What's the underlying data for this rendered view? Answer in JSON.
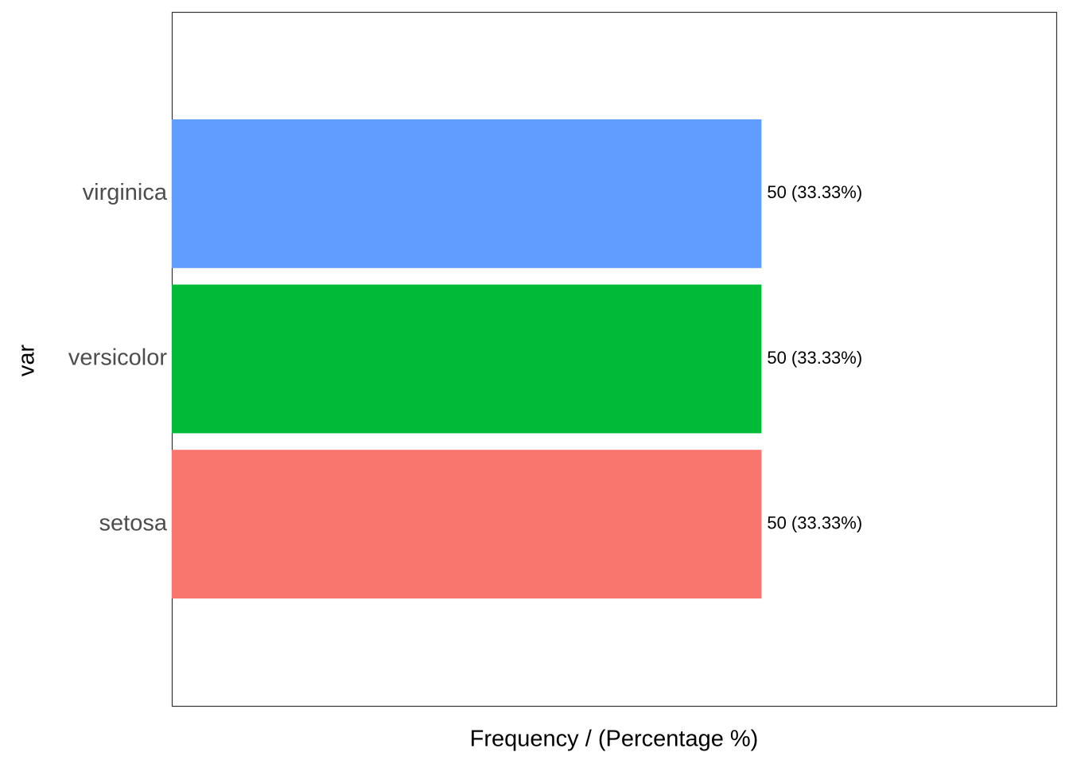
{
  "chart_data": {
    "type": "barh",
    "x_label": "Frequency / (Percentage %)",
    "y_label": "var",
    "categories": [
      "setosa",
      "versicolor",
      "virginica"
    ],
    "values": [
      50,
      50,
      50
    ],
    "value_labels": [
      "50 (33.33%)",
      "50 (33.33%)",
      "50 (33.33%)"
    ],
    "colors": [
      "#F8766D",
      "#00BA38",
      "#619CFF"
    ],
    "xlim": [
      0,
      75
    ]
  }
}
